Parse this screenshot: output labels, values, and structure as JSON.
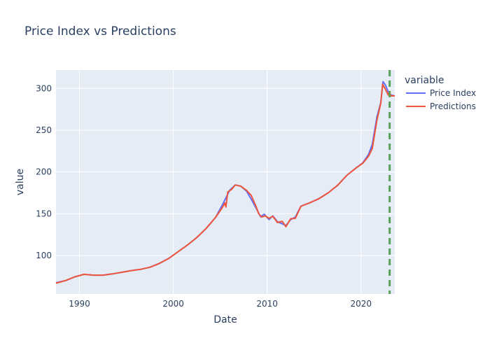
{
  "chart_data": {
    "type": "line",
    "title": "Price Index vs Predictions",
    "xlabel": "Date",
    "ylabel": "value",
    "xlim": [
      1987.5,
      2023.6
    ],
    "ylim": [
      54,
      322
    ],
    "x_ticks": [
      1990,
      2000,
      2010,
      2020
    ],
    "y_ticks": [
      100,
      150,
      200,
      250,
      300
    ],
    "grid": true,
    "legend": {
      "title": "variable",
      "placement": "right"
    },
    "vline": {
      "x": 2023.05,
      "style": "dashed",
      "color": "#5aa05a"
    },
    "series": [
      {
        "name": "Price Index",
        "color": "#636efa",
        "points": [
          [
            1987.5,
            67.5
          ],
          [
            1988.5,
            70
          ],
          [
            1989.5,
            74.5
          ],
          [
            1990.5,
            77.5
          ],
          [
            1991.5,
            76.5
          ],
          [
            1992.5,
            76.5
          ],
          [
            1993.5,
            78
          ],
          [
            1994.5,
            80
          ],
          [
            1995.5,
            82
          ],
          [
            1996.5,
            83.5
          ],
          [
            1997.5,
            86
          ],
          [
            1998.5,
            90.5
          ],
          [
            1999.5,
            96.5
          ],
          [
            2000.5,
            104.5
          ],
          [
            2001.5,
            112.5
          ],
          [
            2002.5,
            121.5
          ],
          [
            2003.5,
            132.5
          ],
          [
            2004.5,
            145.5
          ],
          [
            2005.3,
            162
          ],
          [
            2006.0,
            178
          ],
          [
            2006.6,
            184.5
          ],
          [
            2007.2,
            183
          ],
          [
            2007.8,
            177
          ],
          [
            2008.3,
            167.5
          ],
          [
            2008.9,
            155
          ],
          [
            2009.3,
            146.5
          ],
          [
            2009.7,
            149.5
          ],
          [
            2010.2,
            143
          ],
          [
            2010.6,
            147.5
          ],
          [
            2011.1,
            140.5
          ],
          [
            2011.6,
            138
          ],
          [
            2012.0,
            136
          ],
          [
            2012.5,
            143
          ],
          [
            2013.0,
            146
          ],
          [
            2013.6,
            159
          ],
          [
            2014.5,
            163
          ],
          [
            2015.5,
            168
          ],
          [
            2016.5,
            175
          ],
          [
            2017.5,
            184
          ],
          [
            2018.5,
            196
          ],
          [
            2019.5,
            205
          ],
          [
            2020.2,
            211
          ],
          [
            2020.8,
            221
          ],
          [
            2021.2,
            233
          ],
          [
            2021.7,
            266
          ],
          [
            2022.1,
            283
          ],
          [
            2022.35,
            308
          ],
          [
            2022.6,
            304
          ],
          [
            2022.9,
            296
          ],
          [
            2023.2,
            292
          ],
          [
            2023.6,
            291
          ]
        ]
      },
      {
        "name": "Predictions",
        "color": "#ef553b",
        "points": [
          [
            1987.5,
            67
          ],
          [
            1988.5,
            70
          ],
          [
            1989.5,
            74.5
          ],
          [
            1990.5,
            77.5
          ],
          [
            1991.5,
            76.5
          ],
          [
            1992.5,
            76.5
          ],
          [
            1993.5,
            78
          ],
          [
            1994.5,
            80
          ],
          [
            1995.5,
            82
          ],
          [
            1996.5,
            83.5
          ],
          [
            1997.5,
            86
          ],
          [
            1998.5,
            90.5
          ],
          [
            1999.5,
            96.5
          ],
          [
            2000.5,
            104.5
          ],
          [
            2001.5,
            112.5
          ],
          [
            2002.5,
            121.5
          ],
          [
            2003.5,
            132.5
          ],
          [
            2004.5,
            145.5
          ],
          [
            2005.2,
            157
          ],
          [
            2005.5,
            163
          ],
          [
            2005.6,
            158
          ],
          [
            2005.8,
            176
          ],
          [
            2006.2,
            179
          ],
          [
            2006.6,
            184.5
          ],
          [
            2007.2,
            183
          ],
          [
            2007.8,
            178
          ],
          [
            2008.3,
            172
          ],
          [
            2008.8,
            159
          ],
          [
            2009.1,
            150
          ],
          [
            2009.4,
            146
          ],
          [
            2009.8,
            147.5
          ],
          [
            2010.2,
            144.5
          ],
          [
            2010.6,
            147
          ],
          [
            2011.1,
            139.5
          ],
          [
            2011.6,
            141
          ],
          [
            2012.0,
            134.5
          ],
          [
            2012.5,
            144
          ],
          [
            2013.0,
            144.5
          ],
          [
            2013.6,
            159
          ],
          [
            2014.5,
            163
          ],
          [
            2015.5,
            168
          ],
          [
            2016.5,
            175
          ],
          [
            2017.5,
            184
          ],
          [
            2018.5,
            196
          ],
          [
            2019.5,
            205
          ],
          [
            2020.2,
            210.5
          ],
          [
            2020.8,
            219
          ],
          [
            2021.2,
            228
          ],
          [
            2021.7,
            262
          ],
          [
            2022.1,
            282
          ],
          [
            2022.3,
            305
          ],
          [
            2022.6,
            299
          ],
          [
            2022.9,
            292
          ],
          [
            2023.0,
            296
          ],
          [
            2023.2,
            291
          ],
          [
            2023.6,
            291
          ]
        ]
      }
    ]
  }
}
